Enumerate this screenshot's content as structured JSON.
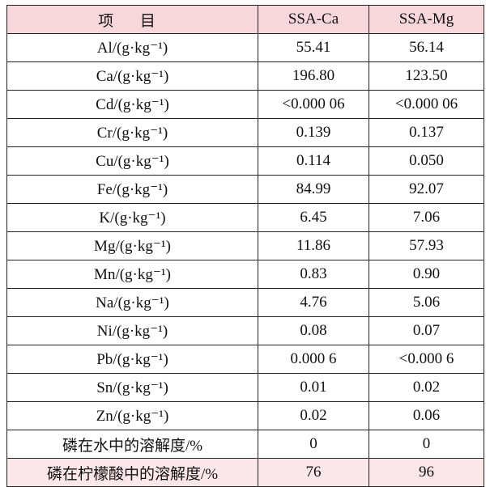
{
  "table": {
    "header": [
      "项 目",
      "SSA-Ca",
      "SSA-Mg"
    ],
    "rows": [
      [
        "Al/(g·kg⁻¹)",
        "55.41",
        "56.14"
      ],
      [
        "Ca/(g·kg⁻¹)",
        "196.80",
        "123.50"
      ],
      [
        "Cd/(g·kg⁻¹)",
        "<0.000 06",
        "<0.000 06"
      ],
      [
        "Cr/(g·kg⁻¹)",
        "0.139",
        "0.137"
      ],
      [
        "Cu/(g·kg⁻¹)",
        "0.114",
        "0.050"
      ],
      [
        "Fe/(g·kg⁻¹)",
        "84.99",
        "92.07"
      ],
      [
        "K/(g·kg⁻¹)",
        "6.45",
        "7.06"
      ],
      [
        "Mg/(g·kg⁻¹)",
        "11.86",
        "57.93"
      ],
      [
        "Mn/(g·kg⁻¹)",
        "0.83",
        "0.90"
      ],
      [
        "Na/(g·kg⁻¹)",
        "4.76",
        "5.06"
      ],
      [
        "Ni/(g·kg⁻¹)",
        "0.08",
        "0.07"
      ],
      [
        "Pb/(g·kg⁻¹)",
        "0.000 6",
        "<0.000 6"
      ],
      [
        "Sn/(g·kg⁻¹)",
        "0.01",
        "0.02"
      ],
      [
        "Zn/(g·kg⁻¹)",
        "0.02",
        "0.06"
      ],
      [
        "磷在水中的溶解度/%",
        "0",
        "0"
      ],
      [
        "磷在柠檬酸中的溶解度/%",
        "76",
        "96"
      ]
    ]
  }
}
